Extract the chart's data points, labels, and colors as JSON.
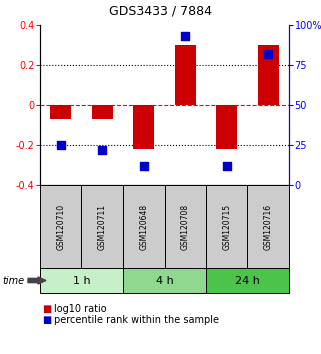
{
  "title": "GDS3433 / 7884",
  "samples": [
    "GSM120710",
    "GSM120711",
    "GSM120648",
    "GSM120708",
    "GSM120715",
    "GSM120716"
  ],
  "log10_ratio": [
    -0.07,
    -0.07,
    -0.22,
    0.3,
    -0.22,
    0.3
  ],
  "percentile_rank": [
    25,
    22,
    12,
    93,
    12,
    82
  ],
  "ylim_left": [
    -0.4,
    0.4
  ],
  "ylim_right": [
    0,
    100
  ],
  "yticks_left": [
    -0.4,
    -0.2,
    0,
    0.2,
    0.4
  ],
  "yticks_right": [
    0,
    25,
    50,
    75,
    100
  ],
  "ytick_labels_right": [
    "0",
    "25",
    "50",
    "75",
    "100%"
  ],
  "hlines": [
    0.2,
    0.0,
    -0.2
  ],
  "hline_styles": [
    "dotted",
    "dashed",
    "dotted"
  ],
  "hline_colors": [
    "black",
    "red",
    "black"
  ],
  "time_groups": [
    {
      "label": "1 h",
      "start": 0,
      "end": 2,
      "color": "#c8f0c8"
    },
    {
      "label": "4 h",
      "start": 2,
      "end": 4,
      "color": "#90d890"
    },
    {
      "label": "24 h",
      "start": 4,
      "end": 6,
      "color": "#4cc44c"
    }
  ],
  "bar_color": "#cc0000",
  "square_color": "#0000cc",
  "bar_width": 0.5,
  "square_size": 30,
  "background_color": "#ffffff",
  "plot_bg_color": "#ffffff",
  "sample_box_color": "#cccccc",
  "legend_labels": [
    "log10 ratio",
    "percentile rank within the sample"
  ],
  "time_label": "time"
}
